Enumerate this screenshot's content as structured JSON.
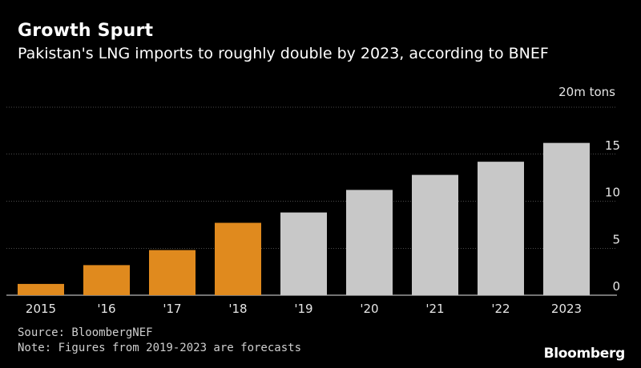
{
  "header": {
    "title": "Growth Spurt",
    "subtitle": "Pakistan's LNG imports to roughly double by 2023, according to BNEF"
  },
  "footer": {
    "source": "Source: BloombergNEF",
    "note": "Note: Figures from 2019-2023 are forecasts",
    "brand": "Bloomberg"
  },
  "colors": {
    "actual": "#e08a1e",
    "forecast": "#c8c8c8",
    "grid": "#ffffff"
  },
  "chart_data": {
    "type": "bar",
    "categories": [
      "2015",
      "'16",
      "'17",
      "'18",
      "'19",
      "'20",
      "'21",
      "'22",
      "2023"
    ],
    "values": [
      1.2,
      3.2,
      4.8,
      7.7,
      8.8,
      11.2,
      12.8,
      14.2,
      16.2
    ],
    "forecast_from_index": 4,
    "unit_label": "20m tons",
    "yticks": [
      0,
      5,
      10,
      15
    ],
    "ylim": [
      0,
      20
    ],
    "grid": true,
    "y_axis_side": "right"
  }
}
